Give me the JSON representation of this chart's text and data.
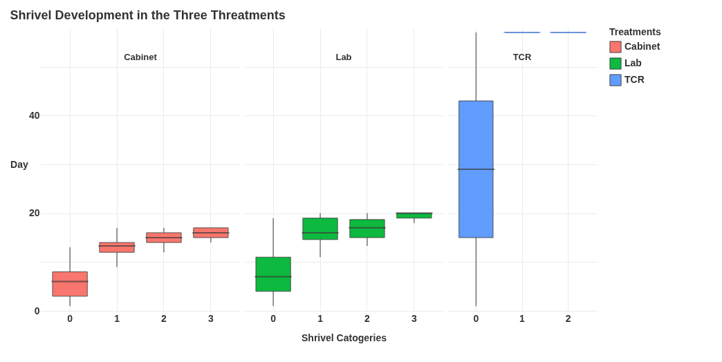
{
  "chart_data": [
    {
      "type": "box",
      "title": "Shrivel Development in the Three Threatments",
      "ylabel": "Day",
      "categories": [
        "0",
        "1",
        "2",
        "3"
      ],
      "ylim": [
        0,
        58
      ],
      "yticks": [
        0,
        {
          "value": 10,
          "label": null
        },
        20,
        {
          "value": 30,
          "label": null
        },
        40,
        {
          "value": 50,
          "label": null
        }
      ],
      "grid": true,
      "series": [
        {
          "name": "Cabinet",
          "color": "#f8766d",
          "boxes": [
            {
              "low": 1,
              "q1": 3,
              "median": 6,
              "q3": 8,
              "high": 13
            },
            {
              "low": 9,
              "q1": 12,
              "median": 13.3,
              "q3": 14,
              "high": 17
            },
            {
              "low": 12,
              "q1": 14,
              "median": 15,
              "q3": 16,
              "high": 17
            },
            {
              "low": 14,
              "q1": 15,
              "median": 16,
              "q3": 17,
              "high": 17
            }
          ]
        }
      ]
    },
    {
      "type": "box",
      "xlabel": "Shrivel Catogeries",
      "categories": [
        "0",
        "1",
        "2",
        "3"
      ],
      "ylim": [
        0,
        58
      ],
      "yticks": [
        0,
        {
          "value": 10,
          "label": null
        },
        20,
        {
          "value": 30,
          "label": null
        },
        40,
        {
          "value": 50,
          "label": null
        }
      ],
      "grid": true,
      "tick_labels": "x",
      "series": [
        {
          "name": "Lab",
          "color": "#0db93e",
          "boxes": [
            {
              "low": 1,
              "q1": 4,
              "median": 7,
              "q3": 11,
              "high": 19
            },
            {
              "low": 11,
              "q1": 14.6,
              "median": 16,
              "q3": 19,
              "high": 20
            },
            {
              "low": 13.3,
              "q1": 15,
              "median": 17,
              "q3": 18.7,
              "high": 20
            },
            {
              "low": 18,
              "q1": 19,
              "median": 20,
              "q3": 20,
              "high": 20
            }
          ]
        }
      ]
    },
    {
      "type": "box",
      "categories": [
        "0",
        "1",
        "2"
      ],
      "ylim": [
        0,
        58
      ],
      "yticks": [
        0,
        {
          "value": 10,
          "label": null
        },
        20,
        {
          "value": 30,
          "label": null
        },
        40,
        {
          "value": 50,
          "label": null
        }
      ],
      "grid": true,
      "tick_labels": "x",
      "legend": "right",
      "legend_title": "Treatments",
      "series": [
        {
          "name": "TCR",
          "color": "#619cff",
          "boxes": [
            {
              "low": 1,
              "q1": 15,
              "median": 29,
              "q3": 43,
              "high": 57
            },
            {
              "low": 57,
              "q1": 57,
              "median": 57,
              "q3": 57,
              "high": 57
            },
            {
              "low": 57,
              "q1": 57,
              "median": 57,
              "q3": 57,
              "high": 57
            }
          ]
        }
      ]
    }
  ]
}
